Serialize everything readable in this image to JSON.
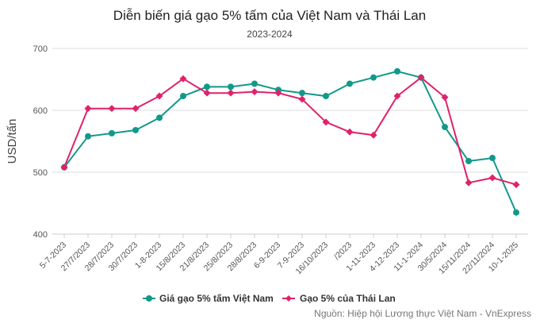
{
  "colors": {
    "vietnam": "#11998a",
    "thailand": "#e0226b",
    "grid": "#dddddd",
    "axis_text": "#555555",
    "title": "#222222",
    "source": "#777777"
  },
  "chart_data": {
    "type": "line",
    "title": "Diễn biến giá gạo 5% tấm của Việt Nam và Thái Lan",
    "subtitle": "2023-2024",
    "ylabel": "USD/tấn",
    "xlabel": "",
    "ylim": [
      400,
      700
    ],
    "yticks": [
      400,
      500,
      600,
      700
    ],
    "grid": true,
    "legend": "bottom-center",
    "source": "Nguồn: Hiệp hội Lương thực Việt Nam - VnExpress",
    "categories": [
      "5-7-2023",
      "27/7/2023",
      "28/7/2023",
      "30/7/2023",
      "1-8-2023",
      "15/8/2023",
      "21/8/2023",
      "25/8/2023",
      "28/8/2023",
      "6-9-2023",
      "7-9-2023",
      "16/10/2023",
      "/2023",
      "1-11-2023",
      "4-12-2023",
      "11-1-2024",
      "30/5/2024",
      "15/11/2024",
      "22/11/2024",
      "10-1-2025"
    ],
    "series": [
      {
        "name": "Giá gạo 5% tấm Việt Nam",
        "marker": "circle",
        "values": [
          508,
          558,
          563,
          568,
          588,
          623,
          638,
          638,
          643,
          633,
          628,
          623,
          643,
          653,
          663,
          653,
          573,
          518,
          523,
          435
        ]
      },
      {
        "name": "Gạo 5% của Thái Lan",
        "marker": "diamond",
        "values": [
          508,
          603,
          603,
          603,
          623,
          651,
          628,
          628,
          630,
          628,
          618,
          581,
          565,
          560,
          623,
          653,
          621,
          483,
          491,
          480
        ]
      }
    ]
  }
}
